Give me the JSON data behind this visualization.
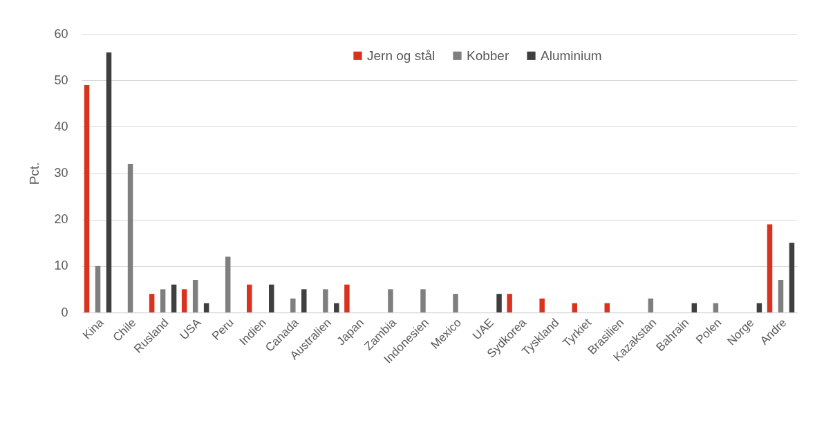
{
  "chart_data": {
    "type": "bar",
    "ylabel": "Pct.",
    "categories": [
      "Kina",
      "Chile",
      "Rusland",
      "USA",
      "Peru",
      "Indien",
      "Canada",
      "Australien",
      "Japan",
      "Zambia",
      "Indonesien",
      "Mexico",
      "UAE",
      "Sydkorea",
      "Tyskland",
      "Tyrkiet",
      "Brasilien",
      "Kazakstan",
      "Bahrain",
      "Polen",
      "Norge",
      "Andre"
    ],
    "series": [
      {
        "name": "Jern og stål",
        "color": "#d93320",
        "values": [
          49,
          null,
          4,
          5,
          null,
          6,
          null,
          null,
          6,
          null,
          null,
          null,
          null,
          4,
          3,
          2,
          2,
          null,
          null,
          null,
          null,
          19
        ]
      },
      {
        "name": "Kobber",
        "color": "#7f7f7f",
        "values": [
          10,
          32,
          5,
          7,
          12,
          null,
          3,
          5,
          null,
          5,
          5,
          4,
          null,
          null,
          null,
          null,
          null,
          3,
          null,
          2,
          null,
          7
        ]
      },
      {
        "name": "Aluminium",
        "color": "#3f3f3f",
        "values": [
          56,
          null,
          6,
          2,
          null,
          6,
          5,
          2,
          null,
          null,
          null,
          null,
          4,
          null,
          null,
          null,
          null,
          null,
          2,
          null,
          2,
          15
        ]
      }
    ],
    "ylim": [
      0,
      60
    ],
    "yticks": [
      0,
      10,
      20,
      30,
      40,
      50,
      60
    ],
    "grid": "y",
    "legend": "top"
  }
}
